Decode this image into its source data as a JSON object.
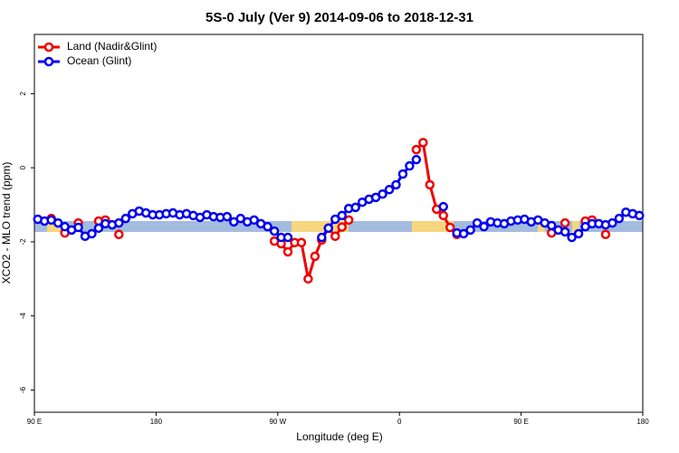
{
  "chart_data": {
    "type": "line",
    "title": "5S-0 July (Ver 9)   2014-09-06 to 2018-12-31",
    "x_label": "Longitude (deg E)",
    "y_label": "XCO2 - MLO trend (ppm)",
    "x": [
      92.5,
      97.5,
      102.5,
      107.5,
      112.5,
      117.5,
      122.5,
      127.5,
      132.5,
      137.5,
      142.5,
      147.5,
      152.5,
      157.5,
      162.5,
      167.5,
      172.5,
      177.5,
      182.5,
      187.5,
      192.5,
      197.5,
      202.5,
      207.5,
      212.5,
      217.5,
      222.5,
      227.5,
      232.5,
      237.5,
      242.5,
      247.5,
      252.5,
      257.5,
      262.5,
      267.5,
      272.5,
      277.5,
      282.5,
      287.5,
      292.5,
      297.5,
      302.5,
      307.5,
      312.5,
      317.5,
      322.5,
      327.5,
      332.5,
      337.5,
      342.5,
      347.5,
      352.5,
      357.5,
      362.5,
      367.5,
      372.5,
      377.5,
      382.5,
      387.5,
      392.5,
      397.5,
      402.5,
      407.5,
      412.5,
      417.5,
      422.5,
      427.5,
      432.5,
      437.5,
      442.5,
      447.5,
      452.5,
      457.5,
      462.5,
      467.5,
      472.5,
      477.5,
      482.5,
      487.5,
      492.5,
      497.5,
      502.5,
      507.5,
      512.5,
      517.5,
      522.5,
      527.5,
      532.5,
      537.5
    ],
    "series": [
      {
        "name": "Land (Nadir&Glint)",
        "color": "#ee0000",
        "values": [
          null,
          null,
          -1.37,
          null,
          -1.76,
          null,
          -1.49,
          null,
          null,
          -1.44,
          -1.41,
          null,
          -1.8,
          null,
          null,
          null,
          null,
          null,
          null,
          null,
          null,
          null,
          null,
          null,
          null,
          null,
          null,
          null,
          null,
          null,
          null,
          null,
          null,
          null,
          null,
          -1.98,
          -2.05,
          -2.27,
          -2.02,
          -2.02,
          -3.0,
          -2.39,
          -1.95,
          -1.63,
          -1.85,
          -1.6,
          -1.41,
          null,
          null,
          null,
          null,
          null,
          null,
          null,
          null,
          null,
          0.49,
          0.68,
          -0.46,
          -1.12,
          -1.29,
          -1.61,
          -1.8,
          null,
          null,
          null,
          null,
          null,
          null,
          null,
          null,
          null,
          null,
          null,
          null,
          null,
          -1.76,
          null,
          -1.49,
          null,
          null,
          -1.44,
          -1.41,
          null,
          -1.8,
          null,
          null,
          null,
          null,
          null
        ]
      },
      {
        "name": "Ocean (Glint)",
        "color": "#0000ee",
        "values": [
          -1.39,
          -1.44,
          -1.41,
          -1.49,
          -1.59,
          -1.68,
          -1.61,
          -1.85,
          -1.78,
          -1.63,
          -1.51,
          -1.54,
          -1.49,
          -1.37,
          -1.24,
          -1.17,
          -1.22,
          -1.27,
          -1.27,
          -1.24,
          -1.22,
          -1.27,
          -1.24,
          -1.29,
          -1.34,
          -1.27,
          -1.32,
          -1.34,
          -1.32,
          -1.46,
          -1.37,
          -1.46,
          -1.41,
          -1.51,
          -1.59,
          -1.71,
          -1.88,
          -1.88,
          null,
          null,
          null,
          null,
          -1.88,
          -1.63,
          -1.39,
          -1.29,
          -1.1,
          -1.07,
          -0.93,
          -0.85,
          -0.8,
          -0.71,
          -0.59,
          -0.46,
          -0.17,
          0.05,
          0.22,
          null,
          null,
          null,
          -1.05,
          null,
          -1.76,
          -1.78,
          -1.68,
          -1.49,
          -1.59,
          -1.46,
          -1.49,
          -1.51,
          -1.44,
          -1.41,
          -1.39,
          -1.46,
          -1.41,
          -1.49,
          -1.56,
          -1.68,
          -1.73,
          -1.88,
          -1.78,
          -1.59,
          -1.51,
          -1.51,
          -1.54,
          -1.49,
          -1.37,
          -1.2,
          -1.24,
          -1.29
        ]
      }
    ],
    "xlim": [
      90,
      540
    ],
    "xticks": [
      {
        "value": 90,
        "label": "90 E"
      },
      180,
      {
        "value": 270,
        "label": "90 W"
      },
      {
        "value": 360,
        "label": "0"
      },
      {
        "value": 450,
        "label": "90 E"
      },
      {
        "value": 540,
        "label": "180"
      }
    ],
    "ylim": [
      -6.6,
      3.6
    ],
    "yticks": [
      -6,
      -4,
      -2,
      0,
      2
    ],
    "legend": "top-left"
  }
}
